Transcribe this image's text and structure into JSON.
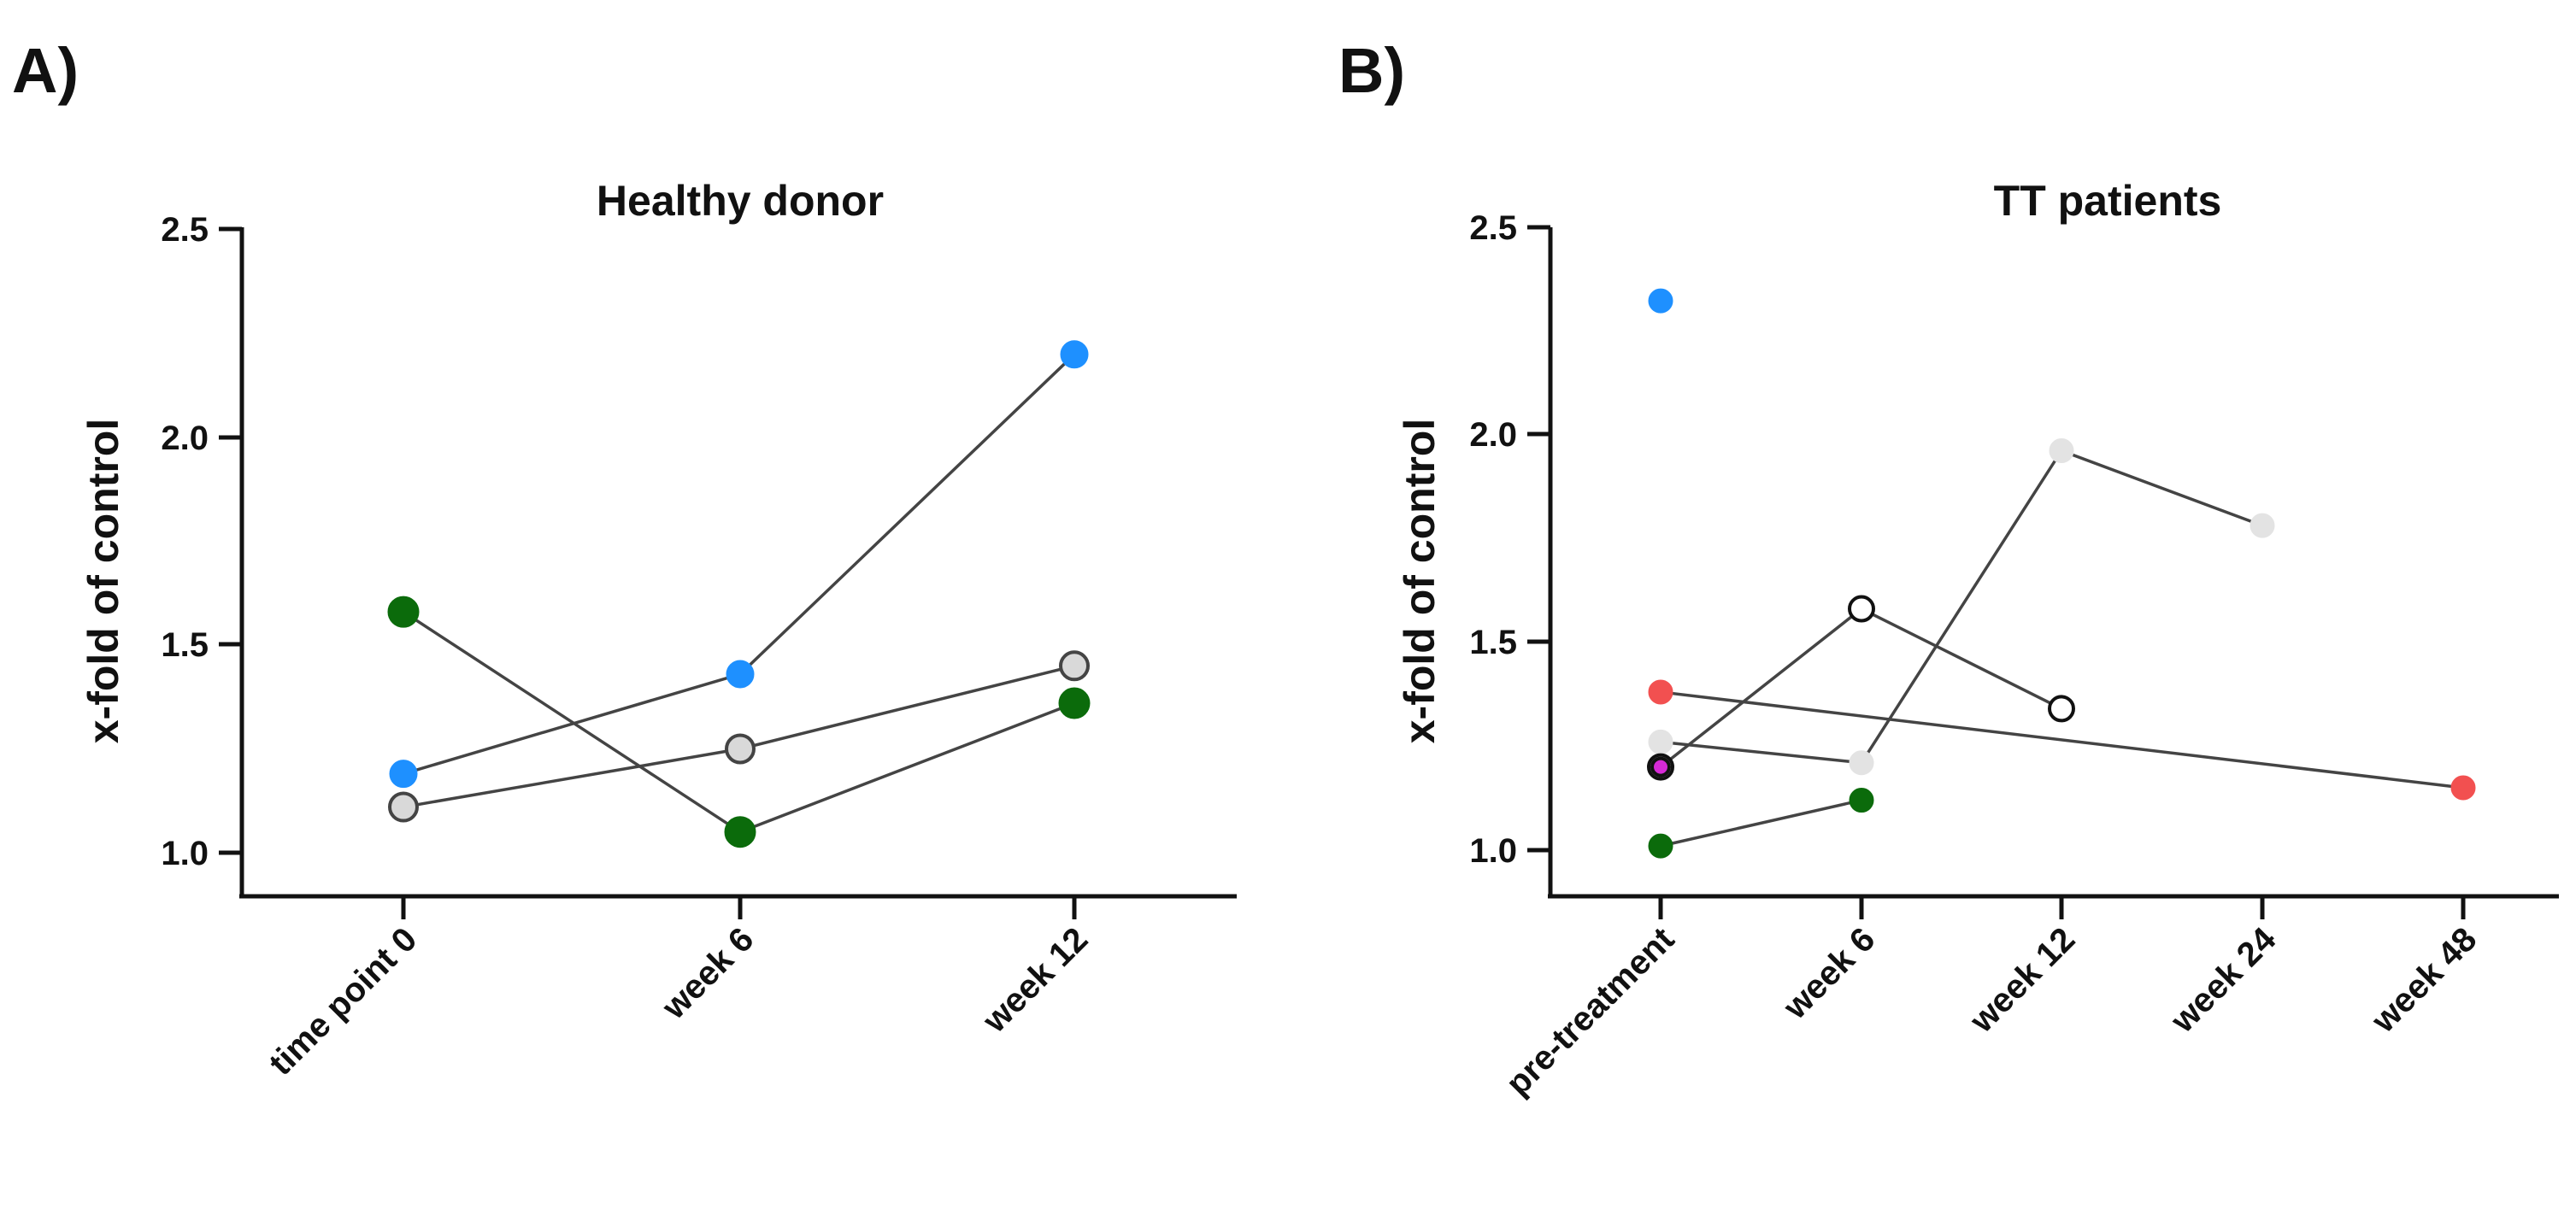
{
  "chart_data": [
    {
      "panel_label": "A)",
      "type": "line",
      "title": "Healthy donor",
      "xlabel": "",
      "ylabel": "x-fold of control",
      "categories": [
        "time point 0",
        "week 6",
        "week 12"
      ],
      "ylim": [
        0.9,
        2.5
      ],
      "yticks": [
        "1.0",
        "1.5",
        "2.0",
        "2.5"
      ],
      "grid": false,
      "series": [
        {
          "name": "blue donor",
          "color": "#1e90ff",
          "edge": "#1e90ff",
          "marker": "large",
          "points": [
            {
              "x": 0,
              "y": 1.19
            },
            {
              "x": 1,
              "y": 1.43
            },
            {
              "x": 2,
              "y": 2.2
            }
          ],
          "connected": true
        },
        {
          "name": "grey donor",
          "color": "#d9d9d9",
          "edge": "#444444",
          "marker": "large",
          "points": [
            {
              "x": 0,
              "y": 1.11
            },
            {
              "x": 1,
              "y": 1.25
            },
            {
              "x": 2,
              "y": 1.45
            }
          ],
          "connected": true
        },
        {
          "name": "green donor",
          "color": "#0b6b0b",
          "edge": "#0b6b0b",
          "marker": "xlarge",
          "points": [
            {
              "x": 0,
              "y": 1.58
            },
            {
              "x": 1,
              "y": 1.05
            },
            {
              "x": 2,
              "y": 1.36
            }
          ],
          "connected": true
        }
      ]
    },
    {
      "panel_label": "B)",
      "type": "line",
      "title": "TT patients",
      "xlabel": "",
      "ylabel": "x-fold of control",
      "categories": [
        "pre-treatment",
        "week 6",
        "week 12",
        "week 24",
        "week 48"
      ],
      "ylim": [
        0.9,
        2.5
      ],
      "yticks": [
        "1.0",
        "1.5",
        "2.0",
        "2.5"
      ],
      "grid": false,
      "series": [
        {
          "name": "blue patient",
          "color": "#1e90ff",
          "edge": "#1e90ff",
          "marker": "medium",
          "points": [
            {
              "x": 0,
              "y": 2.32
            }
          ],
          "connected": false
        },
        {
          "name": "red patient",
          "color": "#f25050",
          "edge": "#f25050",
          "marker": "medium",
          "points": [
            {
              "x": 0,
              "y": 1.38
            },
            {
              "x": 4,
              "y": 1.15
            }
          ],
          "connected": true
        },
        {
          "name": "light grey patient",
          "color": "#e3e3e3",
          "edge": "#e3e3e3",
          "marker": "medium",
          "points": [
            {
              "x": 0,
              "y": 1.26
            },
            {
              "x": 1,
              "y": 1.21
            },
            {
              "x": 2,
              "y": 1.96
            },
            {
              "x": 3,
              "y": 1.78
            }
          ],
          "connected": true
        },
        {
          "name": "open circle patient",
          "color": "#ffffff",
          "edge": "#111111",
          "marker": "medium",
          "points": [
            {
              "x": 0,
              "y": 1.2
            },
            {
              "x": 1,
              "y": 1.58
            },
            {
              "x": 2,
              "y": 1.34
            }
          ],
          "connected": true
        },
        {
          "name": "magenta patient",
          "color": "#d62ad6",
          "edge": "#111111",
          "marker": "small",
          "points": [
            {
              "x": 0,
              "y": 1.2
            }
          ],
          "connected": false
        },
        {
          "name": "green patient",
          "color": "#0b6b0b",
          "edge": "#0b6b0b",
          "marker": "medium",
          "points": [
            {
              "x": 0,
              "y": 1.01
            },
            {
              "x": 1,
              "y": 1.12
            }
          ],
          "connected": true
        }
      ]
    }
  ]
}
